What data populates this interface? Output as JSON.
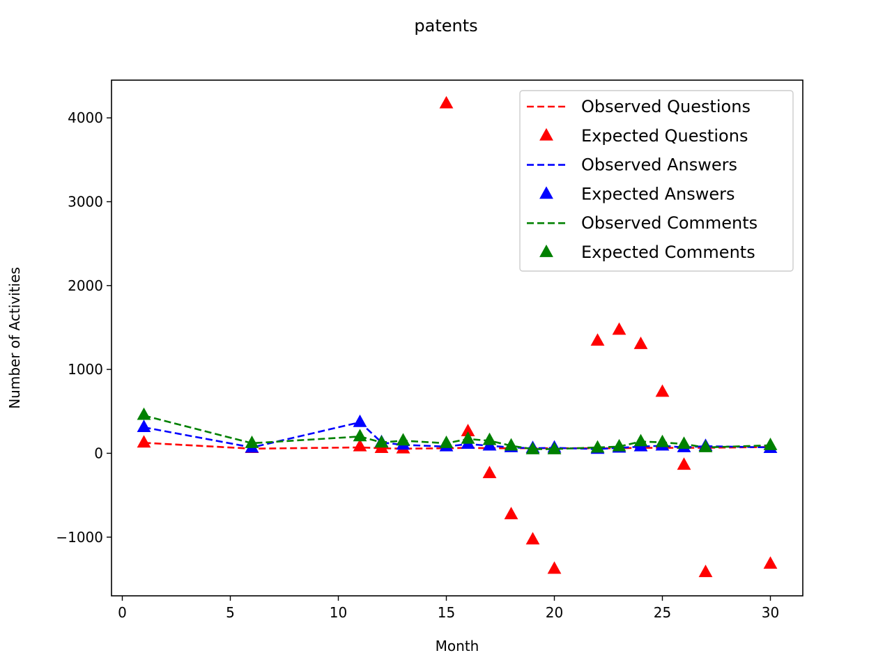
{
  "chart_data": {
    "type": "line",
    "title": "patents",
    "xlabel": "Month",
    "ylabel": "Number of Activities",
    "xlim": [
      -0.5,
      31.5
    ],
    "ylim": [
      -1700,
      4450
    ],
    "xticks": [
      0,
      5,
      10,
      15,
      20,
      25,
      30
    ],
    "xtick_labels": [
      "0",
      "5",
      "10",
      "15",
      "20",
      "25",
      "30"
    ],
    "yticks": [
      -1000,
      0,
      1000,
      2000,
      3000,
      4000
    ],
    "ytick_labels": [
      "−1000",
      "0",
      "1000",
      "2000",
      "3000",
      "4000"
    ],
    "grid": false,
    "legend_position": "upper right",
    "series": [
      {
        "name": "Observed Questions",
        "style": "dashed",
        "color": "#ff0000",
        "x": [
          1,
          6,
          11,
          12,
          13,
          15,
          16,
          17,
          18,
          19,
          20,
          22,
          23,
          24,
          25,
          26,
          27,
          30
        ],
        "y": [
          125,
          55,
          70,
          60,
          55,
          60,
          65,
          60,
          60,
          60,
          60,
          60,
          60,
          65,
          65,
          65,
          65,
          75
        ]
      },
      {
        "name": "Expected Questions",
        "style": "marker",
        "color": "#ff0000",
        "x": [
          1,
          6,
          11,
          12,
          13,
          15,
          16,
          17,
          18,
          19,
          20,
          22,
          23,
          24,
          25,
          26,
          27,
          30
        ],
        "y": [
          125,
          60,
          80,
          60,
          55,
          4170,
          260,
          -240,
          -730,
          -1030,
          -1380,
          1340,
          1470,
          1300,
          730,
          -140,
          -1420,
          -1320
        ]
      },
      {
        "name": "Observed Answers",
        "style": "dashed",
        "color": "#0000ff",
        "x": [
          1,
          6,
          11,
          12,
          13,
          15,
          16,
          17,
          18,
          19,
          20,
          22,
          23,
          24,
          25,
          26,
          27,
          30
        ],
        "y": [
          310,
          70,
          370,
          130,
          100,
          80,
          110,
          90,
          70,
          60,
          65,
          50,
          65,
          80,
          90,
          70,
          85,
          70
        ]
      },
      {
        "name": "Expected Answers",
        "style": "marker",
        "color": "#0000ff",
        "x": [
          1,
          6,
          11,
          12,
          13,
          15,
          16,
          17,
          18,
          19,
          20,
          22,
          23,
          24,
          25,
          26,
          27,
          30
        ],
        "y": [
          310,
          65,
          370,
          130,
          100,
          80,
          110,
          90,
          70,
          60,
          65,
          50,
          65,
          80,
          90,
          70,
          85,
          60
        ]
      },
      {
        "name": "Observed Comments",
        "style": "dashed",
        "color": "#008000",
        "x": [
          1,
          6,
          11,
          12,
          13,
          15,
          16,
          17,
          18,
          19,
          20,
          22,
          23,
          24,
          25,
          26,
          27,
          30
        ],
        "y": [
          450,
          120,
          200,
          130,
          150,
          120,
          170,
          150,
          90,
          50,
          50,
          70,
          80,
          140,
          130,
          110,
          70,
          95
        ]
      },
      {
        "name": "Expected Comments",
        "style": "marker",
        "color": "#008000",
        "x": [
          1,
          6,
          11,
          12,
          13,
          15,
          16,
          17,
          18,
          19,
          20,
          22,
          23,
          24,
          25,
          26,
          27,
          30
        ],
        "y": [
          455,
          120,
          200,
          125,
          150,
          120,
          170,
          155,
          90,
          45,
          45,
          65,
          80,
          140,
          130,
          110,
          70,
          95
        ]
      }
    ]
  }
}
